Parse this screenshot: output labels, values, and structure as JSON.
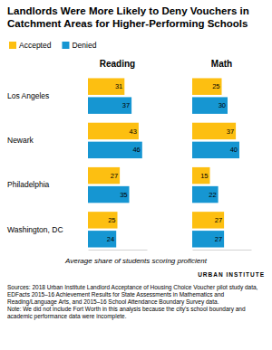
{
  "figure": {
    "title": "Landlords Were More Likely to Deny Vouchers in Catchment Areas for Higher-Performing Schools",
    "xlabel": "Average share of students scoring proficient",
    "sources": "Sources: 2018 Urban Institute Landlord Acceptance of Housing Choice Voucher pilot study data, EDFacts 2015–16 Achievement Results for State Assessments in Mathematics and Reading/Language Arts, and 2015–16 School Attendance Boundary Survey data.",
    "note": "Note: We did not include Fort Worth in this analysis because the city's school boundary and academic performance data were incomplete.",
    "logo": "URBAN INSTITUTE"
  },
  "chart_data": [
    {
      "type": "bar",
      "title": "Reading",
      "orientation": "horizontal",
      "categories": [
        "Los Angeles",
        "Newark",
        "Philadelphia",
        "Washington, DC"
      ],
      "series": [
        {
          "name": "Accepted",
          "color": "#fdbf11",
          "values": [
            31,
            43,
            27,
            25
          ]
        },
        {
          "name": "Denied",
          "color": "#1696d2",
          "values": [
            37,
            46,
            35,
            24
          ]
        }
      ],
      "xlim": [
        0,
        50
      ],
      "tick_labels": "y",
      "data_labels": true,
      "legend": "top"
    },
    {
      "type": "bar",
      "title": "Math",
      "orientation": "horizontal",
      "categories": [
        "Los Angeles",
        "Newark",
        "Philadelphia",
        "Washington, DC"
      ],
      "series": [
        {
          "name": "Accepted",
          "color": "#fdbf11",
          "values": [
            25,
            37,
            15,
            27
          ]
        },
        {
          "name": "Denied",
          "color": "#1696d2",
          "values": [
            30,
            40,
            22,
            27
          ]
        }
      ],
      "xlim": [
        0,
        50
      ],
      "tick_labels": false,
      "data_labels": true
    }
  ]
}
